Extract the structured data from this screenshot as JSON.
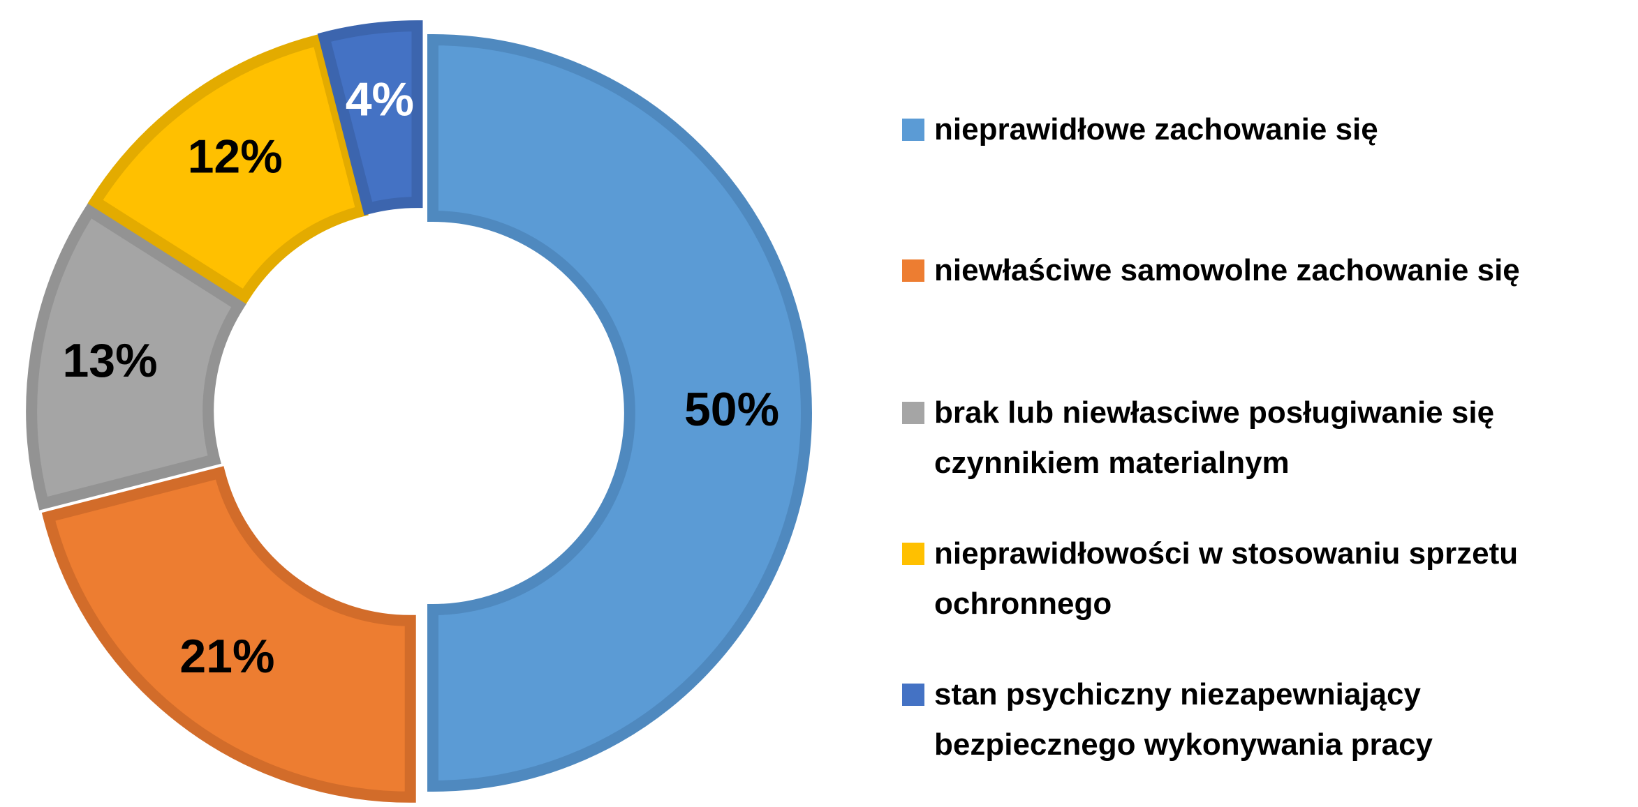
{
  "chart_data": {
    "type": "donut",
    "categories": [
      "nieprawidłowe zachowanie się",
      "niewłaściwe samowolne zachowanie się",
      "brak lub niewłasciwe posługiwanie się czynnikiem materialnym",
      "nieprawidłowości w stosowaniu sprzetu ochronnego",
      "stan psychiczny niezapewniający bezpiecznego wykonywania pracy"
    ],
    "values": [
      50,
      21,
      13,
      12,
      4
    ],
    "value_labels": [
      "50%",
      "21%",
      "13%",
      "12%",
      "4%"
    ],
    "colors": [
      "#5b9bd5",
      "#ed7d31",
      "#a5a5a5",
      "#ffc000",
      "#4472c4"
    ],
    "edge_colors": [
      "#4f89bf",
      "#d26c2a",
      "#939393",
      "#e3ab00",
      "#3c65ae"
    ],
    "value_label_colors": [
      "#000000",
      "#000000",
      "#000000",
      "#000000",
      "#ffffff"
    ],
    "legend": "right"
  }
}
